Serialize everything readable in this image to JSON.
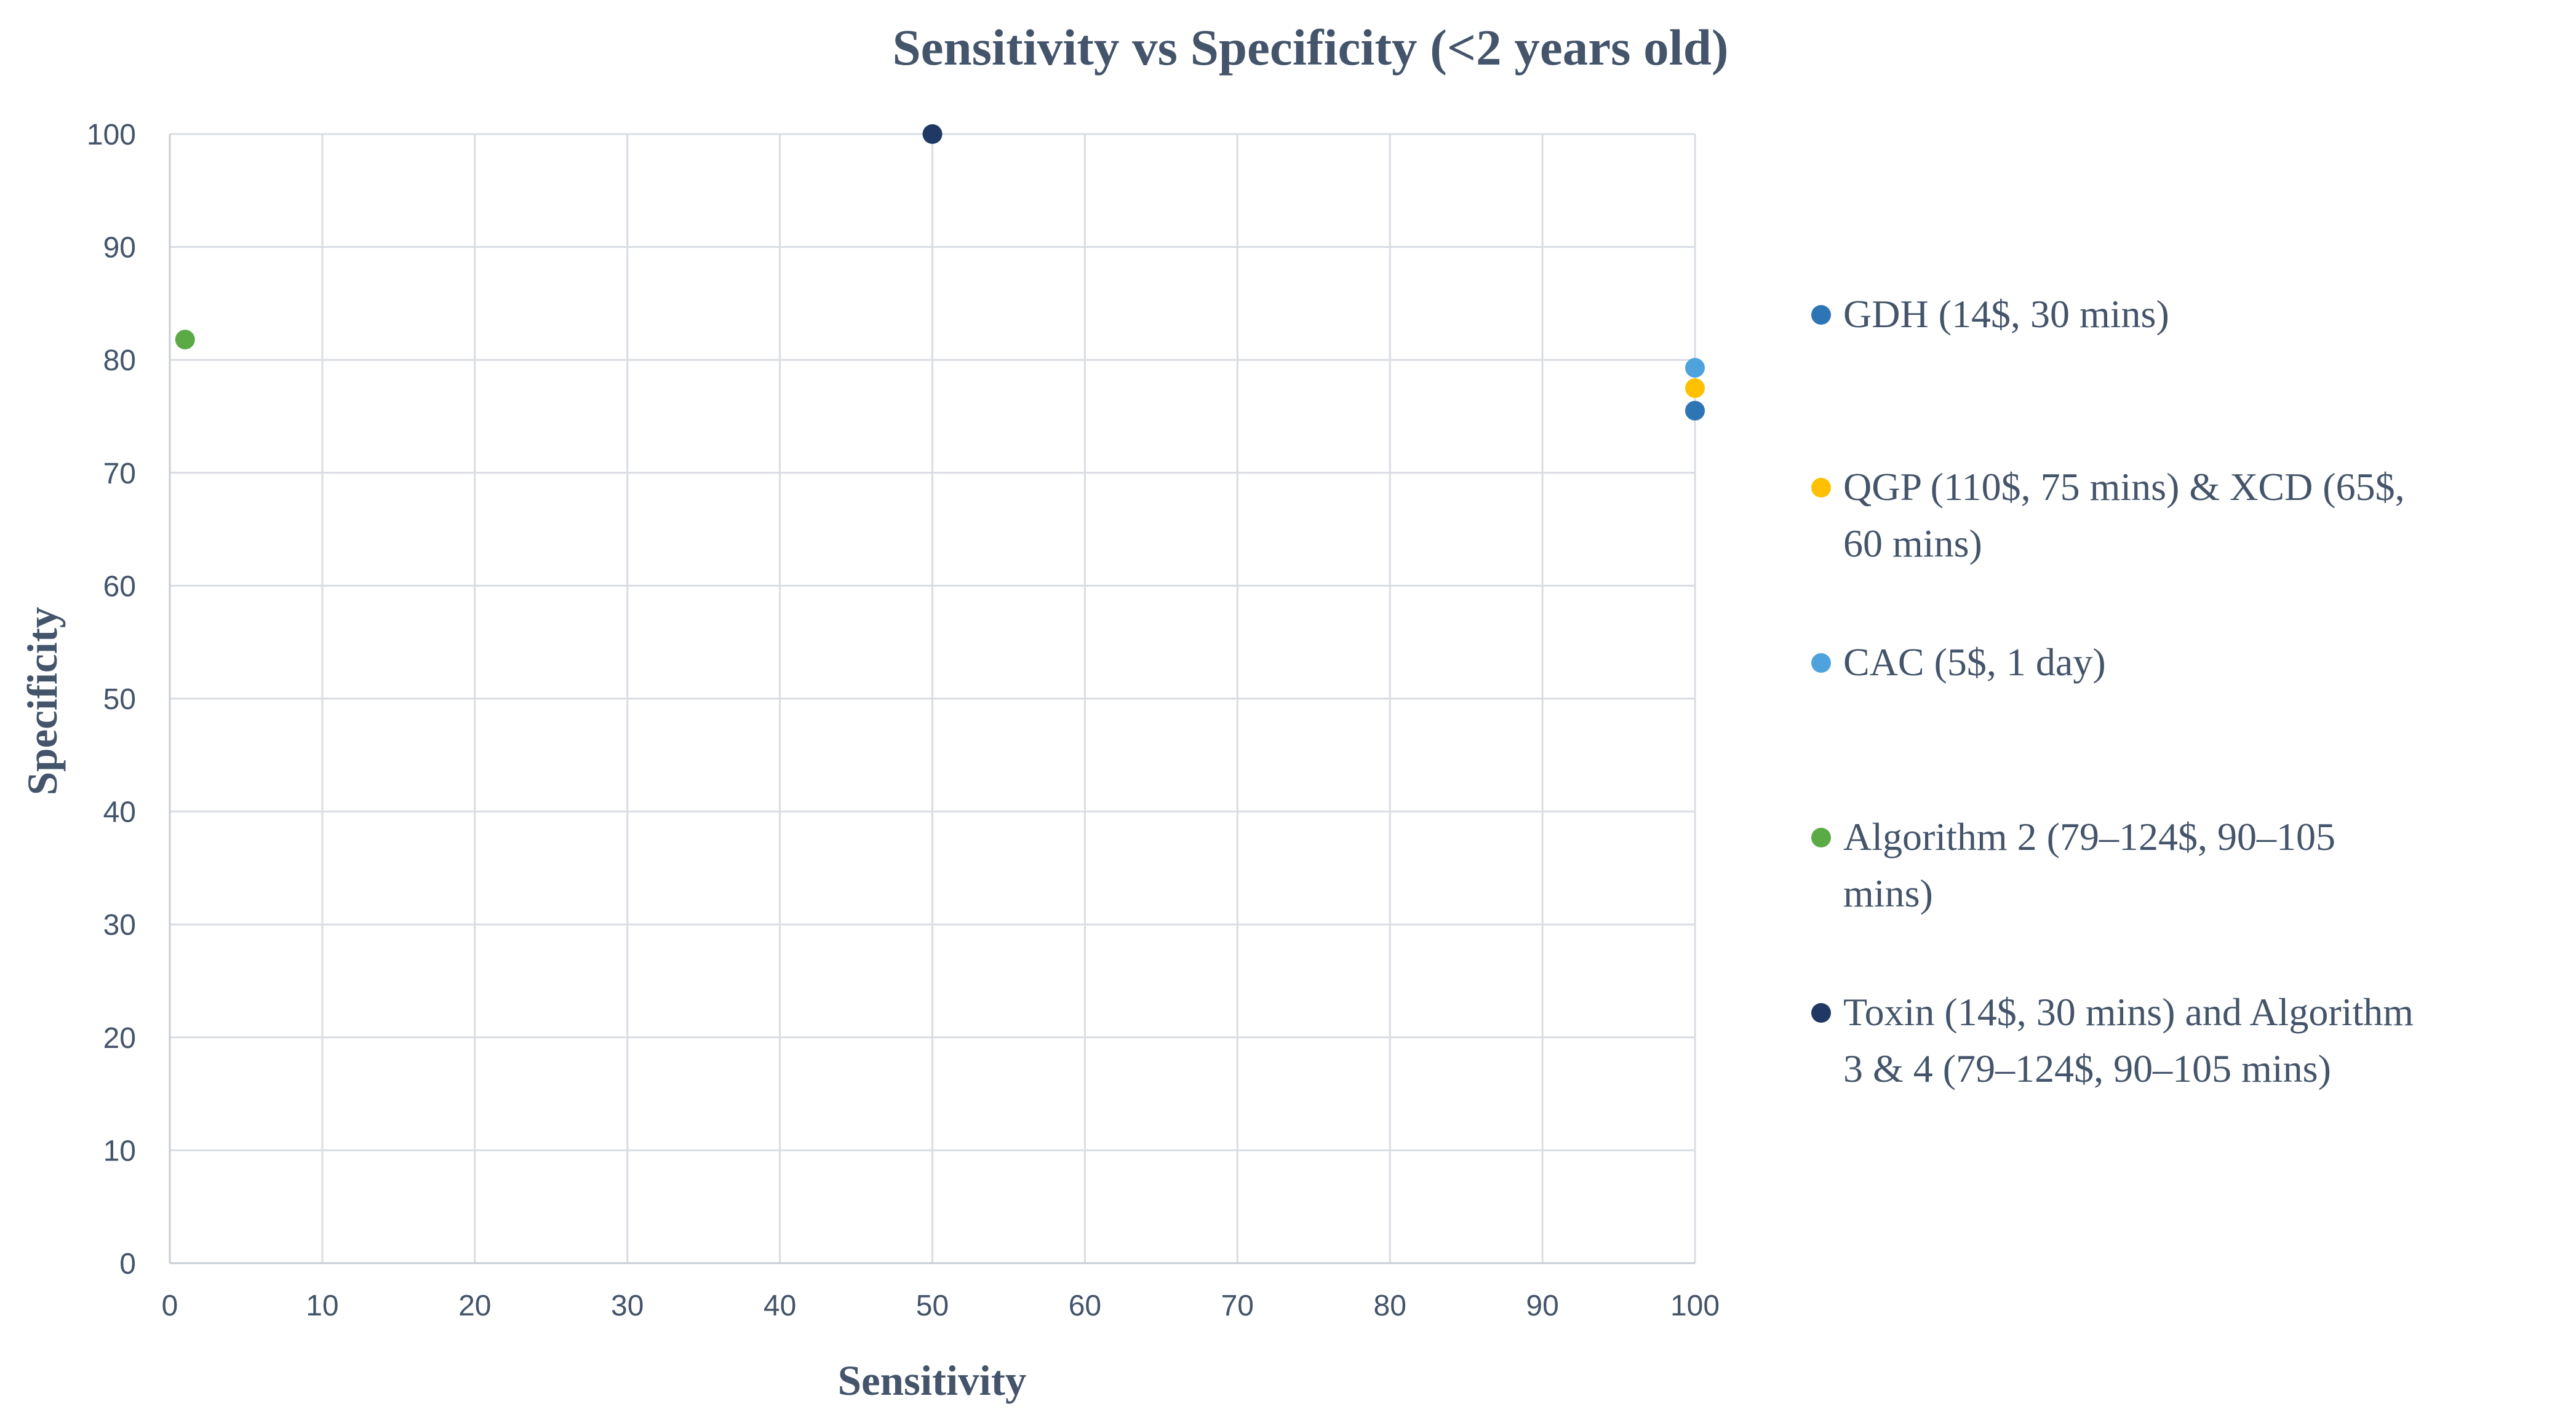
{
  "chart_data": {
    "type": "scatter",
    "title": "Sensitivity vs Specificity (<2 years old)",
    "xlabel": "Sensitivity",
    "ylabel": "Specificity",
    "xlim": [
      0,
      100
    ],
    "ylim": [
      0,
      100
    ],
    "x_ticks": [
      0,
      10,
      20,
      30,
      40,
      50,
      60,
      70,
      80,
      90,
      100
    ],
    "y_ticks": [
      0,
      10,
      20,
      30,
      40,
      50,
      60,
      70,
      80,
      90,
      100
    ],
    "grid": true,
    "legend_position": "right",
    "series": [
      {
        "name": "GDH (14$, 30 mins)",
        "color": "#2e75b6",
        "legend_lines": [
          "GDH (14$, 30 mins)"
        ],
        "points": [
          {
            "x": 100,
            "y": 75.5
          }
        ]
      },
      {
        "name": "QGP (110$, 75 mins) & XCD (65$, 60 mins)",
        "color": "#ffc000",
        "legend_lines": [
          "QGP (110$, 75 mins) & XCD (65$,",
          "60 mins)"
        ],
        "points": [
          {
            "x": 100,
            "y": 77.5
          }
        ]
      },
      {
        "name": "CAC (5$, 1 day)",
        "color": "#4fa3dc",
        "legend_lines": [
          "CAC (5$, 1 day)"
        ],
        "points": [
          {
            "x": 100,
            "y": 79.3
          }
        ]
      },
      {
        "name": "Algorithm 2 (79–124$, 90–105 mins)",
        "color": "#5aaa46",
        "legend_lines": [
          "Algorithm 2  (79–124$, 90–105",
          "mins)"
        ],
        "points": [
          {
            "x": 1,
            "y": 81.8
          }
        ]
      },
      {
        "name": "Toxin (14$, 30 mins) and Algorithm 3 & 4 (79–124$, 90–105 mins)",
        "color": "#1f3864",
        "legend_lines": [
          "Toxin (14$, 30 mins) and Algorithm",
          "3 & 4  (79–124$, 90–105 mins)"
        ],
        "points": [
          {
            "x": 50,
            "y": 100
          }
        ]
      }
    ]
  }
}
